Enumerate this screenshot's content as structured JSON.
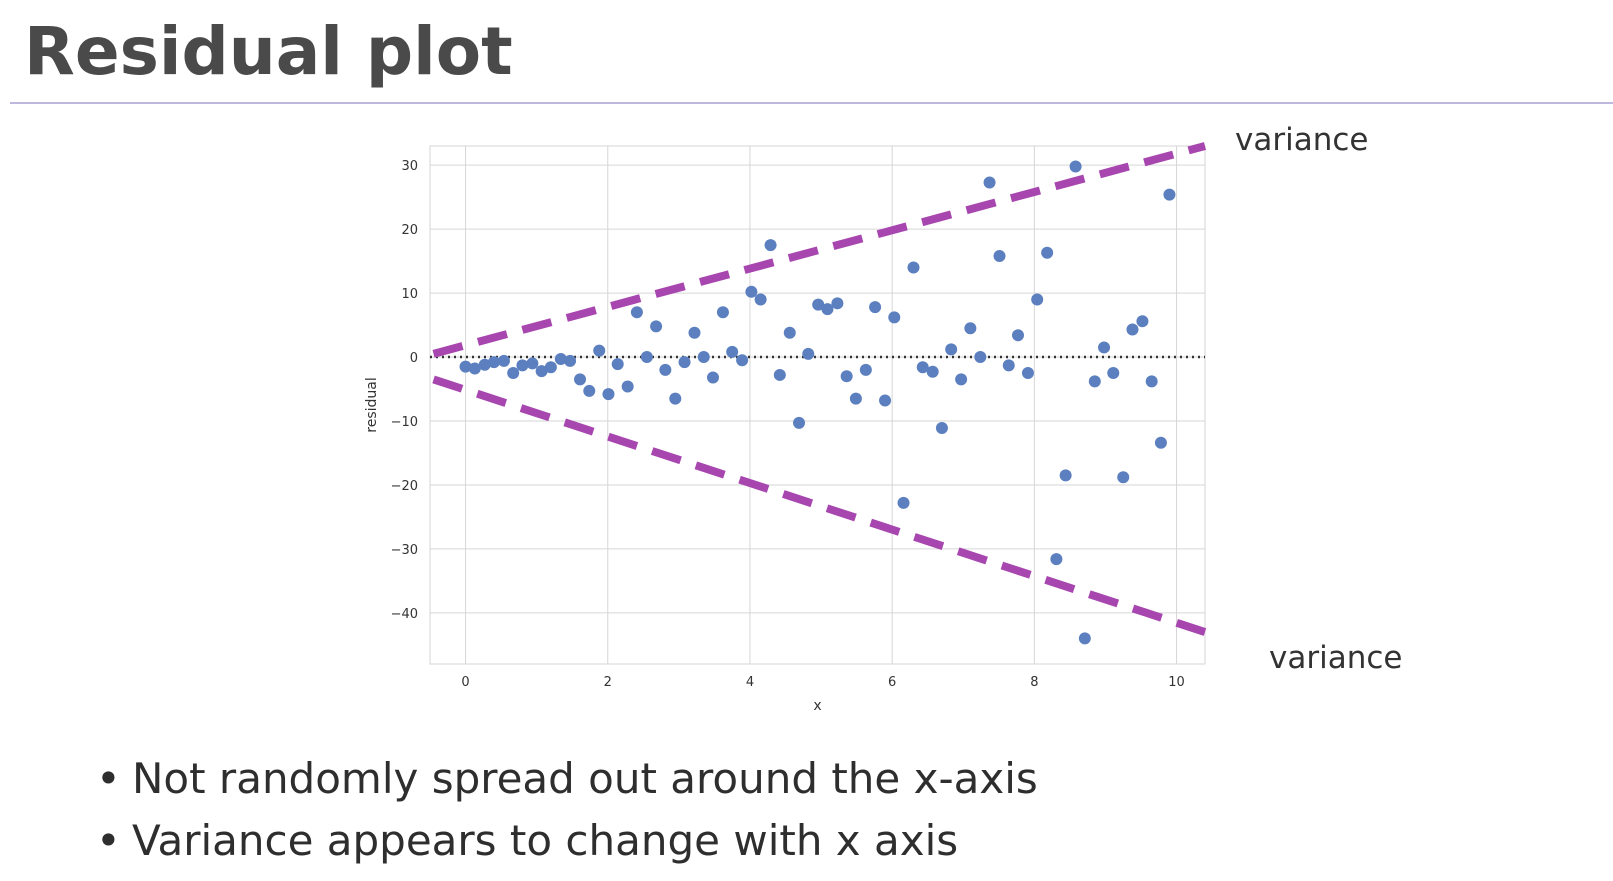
{
  "slide": {
    "title": "Residual plot",
    "bullets": [
      "Not randomly spread out around the x-axis",
      "Variance appears to change with x axis"
    ],
    "bullet_symbol": "•"
  },
  "colors": {
    "points": "#5b7fbf",
    "variance_lines": "#a846b0",
    "zero_line": "#333333",
    "grid": "#d6d6d6",
    "rule": "#bdb8e0"
  },
  "chart_data": {
    "type": "scatter",
    "title": "",
    "xlabel": "x",
    "ylabel": "residual",
    "xlim": [
      -0.5,
      10.4
    ],
    "ylim": [
      -48,
      33
    ],
    "x_ticks": [
      0,
      2,
      4,
      6,
      8,
      10
    ],
    "y_ticks": [
      30,
      20,
      10,
      0,
      -10,
      -20,
      -30,
      -40
    ],
    "grid": true,
    "reference_line": {
      "y": 0,
      "style": "dotted"
    },
    "annotations": [
      {
        "text": "variance",
        "x0": -0.45,
        "y0": 0.5,
        "x1": 10.4,
        "y1": 33,
        "style": "dashed"
      },
      {
        "text": "variance",
        "x0": -0.45,
        "y0": -3.5,
        "x1": 10.4,
        "y1": -43,
        "style": "dashed"
      }
    ],
    "points": [
      [
        0.0,
        -1.5
      ],
      [
        0.13,
        -1.8
      ],
      [
        0.27,
        -1.2
      ],
      [
        0.4,
        -0.8
      ],
      [
        0.54,
        -0.6
      ],
      [
        0.67,
        -2.5
      ],
      [
        0.8,
        -1.3
      ],
      [
        0.94,
        -1.0
      ],
      [
        1.07,
        -2.2
      ],
      [
        1.2,
        -1.6
      ],
      [
        1.34,
        -0.3
      ],
      [
        1.47,
        -0.6
      ],
      [
        1.61,
        -3.5
      ],
      [
        1.74,
        -5.3
      ],
      [
        1.88,
        1.0
      ],
      [
        2.01,
        -5.8
      ],
      [
        2.14,
        -1.1
      ],
      [
        2.28,
        -4.6
      ],
      [
        2.41,
        7.0
      ],
      [
        2.55,
        0.0
      ],
      [
        2.68,
        4.8
      ],
      [
        2.81,
        -2.0
      ],
      [
        2.95,
        -6.5
      ],
      [
        3.08,
        -0.8
      ],
      [
        3.22,
        3.8
      ],
      [
        3.35,
        0.0
      ],
      [
        3.48,
        -3.2
      ],
      [
        3.62,
        7.0
      ],
      [
        3.75,
        0.8
      ],
      [
        3.89,
        -0.5
      ],
      [
        4.02,
        10.2
      ],
      [
        4.15,
        9.0
      ],
      [
        4.29,
        17.5
      ],
      [
        4.42,
        -2.8
      ],
      [
        4.56,
        3.8
      ],
      [
        4.69,
        -10.3
      ],
      [
        4.82,
        0.5
      ],
      [
        4.96,
        8.2
      ],
      [
        5.09,
        7.5
      ],
      [
        5.23,
        8.4
      ],
      [
        5.36,
        -3.0
      ],
      [
        5.49,
        -6.5
      ],
      [
        5.63,
        -2.0
      ],
      [
        5.76,
        7.8
      ],
      [
        5.9,
        -6.8
      ],
      [
        6.03,
        6.2
      ],
      [
        6.16,
        -22.8
      ],
      [
        6.3,
        14.0
      ],
      [
        6.43,
        -1.6
      ],
      [
        6.57,
        -2.3
      ],
      [
        6.7,
        -11.1
      ],
      [
        6.83,
        1.2
      ],
      [
        6.97,
        -3.5
      ],
      [
        7.1,
        4.5
      ],
      [
        7.24,
        0.0
      ],
      [
        7.37,
        27.3
      ],
      [
        7.51,
        15.8
      ],
      [
        7.64,
        -1.3
      ],
      [
        7.77,
        3.4
      ],
      [
        7.91,
        -2.5
      ],
      [
        8.04,
        9.0
      ],
      [
        8.18,
        16.3
      ],
      [
        8.31,
        -31.6
      ],
      [
        8.44,
        -18.5
      ],
      [
        8.58,
        29.8
      ],
      [
        8.71,
        -44.0
      ],
      [
        8.85,
        -3.8
      ],
      [
        8.98,
        1.5
      ],
      [
        9.11,
        -2.5
      ],
      [
        9.25,
        -18.8
      ],
      [
        9.38,
        4.3
      ],
      [
        9.52,
        5.6
      ],
      [
        9.65,
        -3.8
      ],
      [
        9.78,
        -13.4
      ],
      [
        9.9,
        25.4
      ]
    ]
  }
}
